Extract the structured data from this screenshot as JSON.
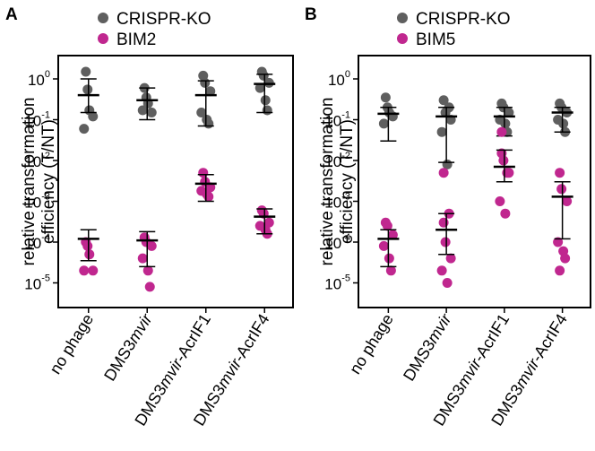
{
  "chart_data": [
    {
      "type": "scatter",
      "panel": "A",
      "ylabel": "relative transformation efficiency (T/NT)",
      "yscale": "log",
      "ylim": [
        1e-06,
        4
      ],
      "ytick_exponents": [
        "0",
        "-1",
        "-2",
        "-3",
        "-4",
        "-5"
      ],
      "categories": [
        {
          "parts": [
            {
              "t": "no phage",
              "i": false
            }
          ]
        },
        {
          "parts": [
            {
              "t": "DMS3",
              "i": false
            },
            {
              "t": "mvir",
              "i": true
            }
          ]
        },
        {
          "parts": [
            {
              "t": "DMS3",
              "i": false
            },
            {
              "t": "mvir",
              "i": true
            },
            {
              "t": "-AcrIF1",
              "i": false
            }
          ]
        },
        {
          "parts": [
            {
              "t": "DMS3",
              "i": false
            },
            {
              "t": "mvir",
              "i": true
            },
            {
              "t": "-AcrIF4",
              "i": false
            }
          ]
        }
      ],
      "series": [
        {
          "name": "CRISPR-KO",
          "color": "#5f5f5f",
          "points": [
            [
              1.5,
              0.55,
              0.12,
              0.06,
              0.17
            ],
            [
              0.6,
              0.35,
              0.15,
              0.17,
              0.25
            ],
            [
              1.2,
              0.8,
              0.5,
              0.15,
              0.1,
              0.08
            ],
            [
              1.5,
              1.2,
              0.8,
              0.6,
              0.3,
              0.17
            ]
          ],
          "mean": [
            0.4,
            0.3,
            0.4,
            0.75
          ],
          "lower": [
            0.15,
            0.1,
            0.07,
            0.15
          ],
          "upper": [
            1.0,
            0.6,
            0.9,
            1.3
          ]
        },
        {
          "name": "BIM2",
          "color": "#c0278f",
          "points": [
            [
              0.0001,
              8e-05,
              2e-05,
              2e-05,
              5e-05
            ],
            [
              0.00013,
              0.0001,
              8e-05,
              4e-05,
              2e-05,
              8e-06
            ],
            [
              0.005,
              0.003,
              0.0022,
              0.0018,
              0.0015,
              0.0013
            ],
            [
              0.0006,
              0.0005,
              0.0003,
              0.00025,
              0.0002,
              0.00016
            ]
          ],
          "mean": [
            0.00012,
            0.00011,
            0.0027,
            0.00042
          ],
          "lower": [
            3.5e-05,
            2.5e-05,
            0.001,
            0.00016
          ],
          "upper": [
            0.0002,
            0.00018,
            0.0045,
            0.00065
          ]
        }
      ]
    },
    {
      "type": "scatter",
      "panel": "B",
      "ylabel": "relative transformation efficiency (T/NT)",
      "yscale": "log",
      "ylim": [
        1e-06,
        4
      ],
      "ytick_exponents": [
        "0",
        "-1",
        "-2",
        "-3",
        "-4",
        "-5"
      ],
      "categories": [
        {
          "parts": [
            {
              "t": "no phage",
              "i": false
            }
          ]
        },
        {
          "parts": [
            {
              "t": "DMS3",
              "i": false
            },
            {
              "t": "mvir",
              "i": true
            }
          ]
        },
        {
          "parts": [
            {
              "t": "DMS3",
              "i": false
            },
            {
              "t": "mvir",
              "i": true
            },
            {
              "t": "-AcrIF1",
              "i": false
            }
          ]
        },
        {
          "parts": [
            {
              "t": "DMS3",
              "i": false
            },
            {
              "t": "mvir",
              "i": true
            },
            {
              "t": "-AcrIF4",
              "i": false
            }
          ]
        }
      ],
      "series": [
        {
          "name": "CRISPR-KO",
          "color": "#5f5f5f",
          "points": [
            [
              0.35,
              0.2,
              0.12,
              0.08,
              0.15
            ],
            [
              0.3,
              0.15,
              0.1,
              0.05,
              0.008,
              0.2
            ],
            [
              0.25,
              0.2,
              0.15,
              0.1,
              0.08,
              0.05
            ],
            [
              0.25,
              0.2,
              0.15,
              0.1,
              0.08,
              0.05
            ]
          ],
          "mean": [
            0.14,
            0.12,
            0.12,
            0.15
          ],
          "lower": [
            0.03,
            0.009,
            0.04,
            0.05
          ],
          "upper": [
            0.2,
            0.2,
            0.2,
            0.2
          ]
        },
        {
          "name": "BIM5",
          "color": "#c0278f",
          "points": [
            [
              0.0003,
              0.00025,
              0.00015,
              8e-05,
              4e-05,
              2e-05
            ],
            [
              0.005,
              0.0001,
              4e-05,
              2e-05,
              1e-05,
              0.0005,
              0.0003
            ],
            [
              0.05,
              0.01,
              0.005,
              0.001,
              0.0005,
              0.005,
              0.015
            ],
            [
              0.005,
              0.002,
              0.001,
              0.0001,
              6e-05,
              4e-05,
              2e-05
            ]
          ],
          "mean": [
            0.00012,
            0.0002,
            0.007,
            0.0013
          ],
          "lower": [
            2.5e-05,
            5e-05,
            0.003,
            0.00012
          ],
          "upper": [
            0.0002,
            0.0005,
            0.018,
            0.003
          ]
        }
      ]
    }
  ]
}
